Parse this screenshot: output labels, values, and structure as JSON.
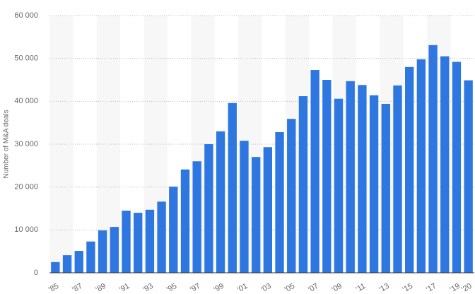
{
  "chart_data": {
    "type": "bar",
    "y_label": "Number of M&A deals",
    "categories": [
      "'85",
      null,
      "'87",
      null,
      "'89",
      null,
      "'91",
      null,
      "'93",
      null,
      "'95",
      null,
      "'97",
      null,
      "'99",
      null,
      "'01",
      null,
      "'03",
      null,
      "'05",
      null,
      "'07",
      null,
      "'09",
      null,
      "'11",
      null,
      "'13",
      null,
      "'15",
      null,
      "'17",
      null,
      "'19",
      "'20"
    ],
    "values": [
      2500,
      4100,
      5100,
      7300,
      9900,
      10700,
      14500,
      14000,
      14700,
      16600,
      20100,
      24100,
      26000,
      30000,
      33000,
      39600,
      30800,
      27000,
      29300,
      32800,
      35900,
      41200,
      47300,
      45000,
      40600,
      44700,
      43800,
      41400,
      39400,
      43700,
      48000,
      49800,
      53100,
      50500,
      49200,
      44900
    ],
    "color": "#2f77e0",
    "ylim": [
      0,
      60000
    ],
    "yticks": [
      0,
      {
        "value": 10000,
        "label": "10 000"
      },
      {
        "value": 20000,
        "label": "20 000"
      },
      {
        "value": 30000,
        "label": "30 000"
      },
      {
        "value": 40000,
        "label": "40 000"
      },
      {
        "value": 50000,
        "label": "50 000"
      },
      {
        "value": 60000,
        "label": "60 000"
      }
    ],
    "grid": true
  }
}
